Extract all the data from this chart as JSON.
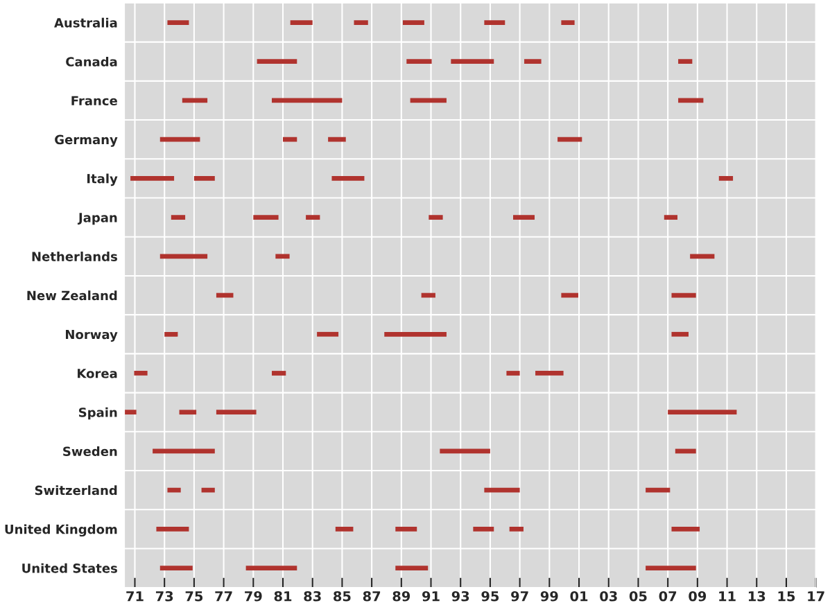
{
  "chart_data": {
    "type": "bar",
    "orientation": "horizontal",
    "categories": [
      "Australia",
      "Canada",
      "France",
      "Germany",
      "Italy",
      "Japan",
      "Netherlands",
      "New Zealand",
      "Norway",
      "Korea",
      "Spain",
      "Sweden",
      "Switzerland",
      "United Kingdom",
      "United States"
    ],
    "series": [
      {
        "color": "#b0332e",
        "base": [
          1973.2,
          1979.25,
          1974.2,
          1972.7,
          1970.7,
          1973.45,
          1972.7,
          1976.5,
          1973.0,
          1970.95,
          1970.3,
          1972.2,
          1973.2,
          1972.45,
          1972.7
        ],
        "values": [
          1.45,
          2.7,
          1.7,
          2.7,
          2.95,
          0.95,
          3.2,
          1.15,
          0.9,
          0.9,
          0.8,
          4.2,
          0.9,
          2.2,
          2.2
        ]
      },
      {
        "color": "#b0332e",
        "base": [
          1981.5,
          1989.35,
          1980.25,
          1981.0,
          1975.0,
          1979.0,
          1980.5,
          1990.35,
          1983.3,
          1980.25,
          1974.0,
          1991.6,
          1975.5,
          1984.55,
          1978.5
        ],
        "values": [
          1.5,
          1.7,
          4.75,
          0.95,
          1.4,
          1.7,
          0.95,
          0.95,
          1.45,
          0.95,
          1.15,
          3.4,
          0.9,
          1.2,
          3.45
        ]
      },
      {
        "color": "#b0332e",
        "base": [
          1985.8,
          1992.35,
          1989.6,
          1984.05,
          1984.3,
          1982.55,
          2008.5,
          1999.8,
          1987.85,
          1996.1,
          1976.5,
          2007.5,
          1994.6,
          1988.6,
          1988.6
        ],
        "values": [
          0.95,
          2.9,
          2.45,
          1.2,
          2.2,
          0.95,
          1.65,
          1.15,
          4.2,
          0.9,
          2.7,
          1.4,
          2.4,
          1.45,
          2.2
        ]
      },
      {
        "color": "#b0332e",
        "base": [
          1989.1,
          1997.3,
          2007.7,
          1999.55,
          2010.45,
          1990.85,
          null,
          2007.25,
          2007.25,
          1998.05,
          2007.0,
          null,
          2005.5,
          1993.85,
          2005.5
        ],
        "values": [
          1.45,
          1.15,
          1.7,
          1.65,
          0.95,
          0.95,
          null,
          1.65,
          1.15,
          1.9,
          4.65,
          null,
          1.65,
          1.4,
          3.4
        ]
      },
      {
        "color": "#b0332e",
        "base": [
          1994.6,
          2007.7,
          null,
          null,
          null,
          1996.55,
          null,
          null,
          null,
          null,
          null,
          null,
          null,
          1996.3,
          null
        ],
        "values": [
          1.4,
          0.95,
          null,
          null,
          null,
          1.45,
          null,
          null,
          null,
          null,
          null,
          null,
          null,
          0.95,
          null
        ]
      },
      {
        "color": "#b0332e",
        "base": [
          1999.8,
          null,
          null,
          null,
          null,
          2006.75,
          null,
          null,
          null,
          null,
          null,
          null,
          null,
          2007.25,
          null
        ],
        "values": [
          0.9,
          null,
          null,
          null,
          null,
          0.9,
          null,
          null,
          null,
          null,
          null,
          null,
          null,
          1.9,
          null
        ]
      }
    ],
    "xlim": [
      1970.3,
      2017
    ],
    "xticks": [
      {
        "value": 1971,
        "label": "71"
      },
      {
        "value": 1973,
        "label": "73"
      },
      {
        "value": 1975,
        "label": "75"
      },
      {
        "value": 1977,
        "label": "77"
      },
      {
        "value": 1979,
        "label": "79"
      },
      {
        "value": 1981,
        "label": "81"
      },
      {
        "value": 1983,
        "label": "83"
      },
      {
        "value": 1985,
        "label": "85"
      },
      {
        "value": 1987,
        "label": "87"
      },
      {
        "value": 1989,
        "label": "89"
      },
      {
        "value": 1991,
        "label": "91"
      },
      {
        "value": 1993,
        "label": "93"
      },
      {
        "value": 1995,
        "label": "95"
      },
      {
        "value": 1997,
        "label": "97"
      },
      {
        "value": 1999,
        "label": "99"
      },
      {
        "value": 2001,
        "label": "01"
      },
      {
        "value": 2003,
        "label": "03"
      },
      {
        "value": 2005,
        "label": "05"
      },
      {
        "value": 2007,
        "label": "07"
      },
      {
        "value": 2009,
        "label": "09"
      },
      {
        "value": 2011,
        "label": "11"
      },
      {
        "value": 2013,
        "label": "13"
      },
      {
        "value": 2015,
        "label": "15"
      },
      {
        "value": 2017,
        "label": "17"
      }
    ],
    "grid": true,
    "legend": false
  }
}
